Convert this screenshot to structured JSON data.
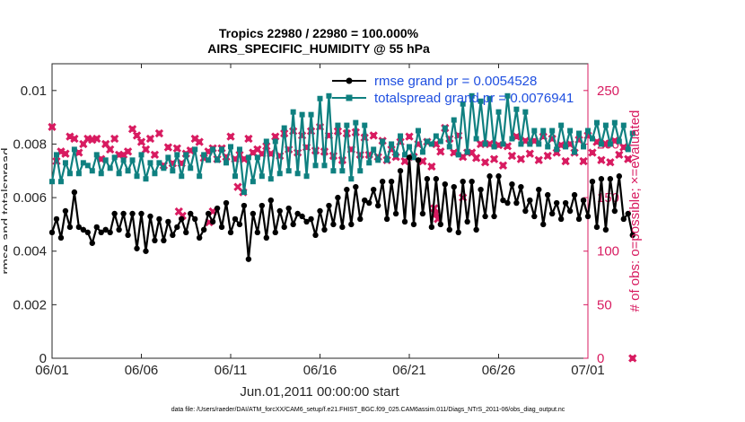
{
  "chart_data": {
    "type": "line",
    "title_line1": "Tropics 22980 / 22980 = 100.000%",
    "title_line2": "AIRS_SPECIFIC_HUMIDITY @ 55 hPa",
    "xlabel": "Jun.01,2011 00:00:00 start",
    "ylabel_left": "rmse and totalspread",
    "ylabel_right": "# of obs: o=possible; ×=evaluated",
    "footer": "data file: /Users/raeder/DAI/ATM_forcXX/CAM6_setup/f.e21.FHIST_BGC.f09_025.CAM6assim.011/Diags_NTrS_2011-06/obs_diag_output.nc",
    "xlim": [
      0,
      30
    ],
    "ylim_left": [
      0,
      0.011
    ],
    "ylim_right": [
      0,
      275
    ],
    "xticks": [
      {
        "value": 0,
        "label": "06/01"
      },
      {
        "value": 5,
        "label": "06/06"
      },
      {
        "value": 10,
        "label": "06/11"
      },
      {
        "value": 15,
        "label": "06/16"
      },
      {
        "value": 20,
        "label": "06/21"
      },
      {
        "value": 25,
        "label": "06/26"
      },
      {
        "value": 30,
        "label": "07/01"
      }
    ],
    "yticks_left": [
      {
        "value": 0,
        "label": "0"
      },
      {
        "value": 0.002,
        "label": "0.002"
      },
      {
        "value": 0.004,
        "label": "0.004"
      },
      {
        "value": 0.006,
        "label": "0.006"
      },
      {
        "value": 0.008,
        "label": "0.008"
      },
      {
        "value": 0.01,
        "label": "0.01"
      }
    ],
    "yticks_right": [
      {
        "value": 0,
        "label": "0"
      },
      {
        "value": 50,
        "label": "50"
      },
      {
        "value": 100,
        "label": "100"
      },
      {
        "value": 150,
        "label": "150"
      },
      {
        "value": 200,
        "label": "200"
      },
      {
        "value": 250,
        "label": "250"
      }
    ],
    "x_step_days": 0.25,
    "series": [
      {
        "name": "rmse",
        "legend_label": "rmse grand pr = 0.0054528",
        "color": "#000000",
        "marker": "circle",
        "axis": "left",
        "values": [
          0.0047,
          0.0052,
          0.0045,
          0.0055,
          0.0049,
          0.0062,
          0.0049,
          0.0048,
          0.0047,
          0.0043,
          0.0049,
          0.0047,
          0.0048,
          0.0047,
          0.0054,
          0.0048,
          0.0054,
          0.0046,
          0.0054,
          0.0041,
          0.0054,
          0.004,
          0.0053,
          0.0044,
          0.0052,
          0.0044,
          0.0051,
          0.0046,
          0.0049,
          0.0052,
          0.0047,
          0.0054,
          0.0052,
          0.0045,
          0.0048,
          0.0054,
          0.0051,
          0.0056,
          0.0049,
          0.0058,
          0.0047,
          0.0052,
          0.005,
          0.0057,
          0.0037,
          0.0054,
          0.0047,
          0.0057,
          0.0045,
          0.0059,
          0.0047,
          0.0055,
          0.0049,
          0.0056,
          0.005,
          0.0054,
          0.0053,
          0.0051,
          0.0052,
          0.0046,
          0.0055,
          0.0048,
          0.0057,
          0.005,
          0.006,
          0.0049,
          0.0063,
          0.005,
          0.0064,
          0.0052,
          0.0059,
          0.0058,
          0.0063,
          0.0057,
          0.0066,
          0.0052,
          0.0066,
          0.0054,
          0.007,
          0.0051,
          0.0075,
          0.005,
          0.0074,
          0.0054,
          0.0067,
          0.0049,
          0.0067,
          0.005,
          0.0065,
          0.0048,
          0.0064,
          0.0047,
          0.0066,
          0.0051,
          0.0066,
          0.0048,
          0.0063,
          0.0053,
          0.0068,
          0.0053,
          0.0068,
          0.0059,
          0.0058,
          0.0065,
          0.0058,
          0.0064,
          0.0055,
          0.0059,
          0.0053,
          0.0063,
          0.005,
          0.0061,
          0.0054,
          0.0058,
          0.0052,
          0.0058,
          0.0055,
          0.0061,
          0.0052,
          0.0059,
          0.0053,
          0.0066,
          0.0049,
          0.0067,
          0.0048,
          0.0067,
          0.0055,
          0.0068,
          0.0052,
          0.0054,
          0.0046
        ]
      },
      {
        "name": "totalspread",
        "legend_label": "totalspread grand pr = 0.0076941",
        "color": "#0f8080",
        "marker": "square",
        "axis": "left",
        "values": [
          0.0066,
          0.0076,
          0.0066,
          0.0073,
          0.0069,
          0.0078,
          0.0069,
          0.0073,
          0.0072,
          0.007,
          0.0076,
          0.0069,
          0.0074,
          0.0071,
          0.0075,
          0.0069,
          0.0074,
          0.007,
          0.0074,
          0.0068,
          0.0076,
          0.0067,
          0.0073,
          0.0069,
          0.0073,
          0.0071,
          0.0075,
          0.007,
          0.0076,
          0.0068,
          0.0076,
          0.0071,
          0.0078,
          0.0068,
          0.0076,
          0.0074,
          0.0078,
          0.0074,
          0.0078,
          0.0073,
          0.0079,
          0.0068,
          0.0078,
          0.0062,
          0.0075,
          0.0066,
          0.0075,
          0.0068,
          0.0081,
          0.0067,
          0.0081,
          0.0069,
          0.0086,
          0.007,
          0.0092,
          0.0069,
          0.0091,
          0.0068,
          0.0091,
          0.0072,
          0.0097,
          0.0072,
          0.0098,
          0.007,
          0.0087,
          0.007,
          0.0087,
          0.0067,
          0.0088,
          0.007,
          0.0087,
          0.0073,
          0.0078,
          0.0074,
          0.0081,
          0.0074,
          0.008,
          0.0076,
          0.0083,
          0.0076,
          0.0079,
          0.0075,
          0.0085,
          0.0077,
          0.0081,
          0.008,
          0.0083,
          0.0081,
          0.0086,
          0.0079,
          0.0089,
          0.0076,
          0.0095,
          0.0077,
          0.0098,
          0.0082,
          0.0096,
          0.008,
          0.0097,
          0.0079,
          0.0092,
          0.008,
          0.0098,
          0.0082,
          0.0093,
          0.008,
          0.0092,
          0.008,
          0.0085,
          0.008,
          0.0085,
          0.0079,
          0.0085,
          0.0078,
          0.0087,
          0.0079,
          0.0085,
          0.0077,
          0.0084,
          0.0079,
          0.0085,
          0.0082,
          0.0088,
          0.008,
          0.0087,
          0.008,
          0.0088,
          0.0081,
          0.0087,
          0.0078,
          0.0084
        ]
      },
      {
        "name": "obs_possible",
        "color": "#d81b60",
        "marker": "circle",
        "axis": "right",
        "values": [
          216,
          184,
          193,
          191,
          207,
          205,
          192,
          200,
          205,
          204,
          205,
          186,
          200,
          195,
          205,
          190,
          190,
          193,
          214,
          208,
          202,
          195,
          205,
          190,
          210,
          180,
          197,
          182,
          196,
          182,
          191,
          194,
          205,
          202,
          187,
          193,
          196,
          186,
          196,
          188,
          207,
          186,
          190,
          186,
          205,
          192,
          195,
          191,
          198,
          191,
          207,
          189,
          210,
          195,
          212,
          192,
          208,
          197,
          212,
          194,
          216,
          193,
          208,
          189,
          212,
          185,
          210,
          195,
          211,
          190,
          206,
          190,
          208,
          188,
          203,
          185,
          195,
          188,
          202,
          184,
          207,
          188,
          200,
          184,
          202,
          179,
          200,
          193,
          215,
          205,
          192,
          208,
          188,
          192,
          192,
          187,
          200,
          183,
          200,
          186,
          199,
          180,
          198,
          189,
          207,
          186,
          203,
          191,
          203,
          185,
          207,
          189,
          205,
          192,
          199,
          184,
          200,
          192,
          204,
          184,
          208,
          192,
          202,
          185,
          200,
          183,
          203,
          190,
          197,
          186,
          0
        ]
      },
      {
        "name": "obs_evaluated",
        "color": "#d81b60",
        "marker": "x",
        "axis": "right",
        "values": [
          216,
          184,
          193,
          191,
          207,
          205,
          192,
          200,
          205,
          204,
          205,
          186,
          200,
          195,
          205,
          190,
          190,
          193,
          214,
          208,
          202,
          195,
          205,
          190,
          210,
          180,
          197,
          182,
          196,
          182,
          191,
          194,
          205,
          202,
          187,
          193,
          196,
          186,
          196,
          188,
          207,
          186,
          190,
          186,
          205,
          192,
          195,
          191,
          198,
          191,
          207,
          189,
          210,
          195,
          212,
          192,
          208,
          197,
          212,
          194,
          216,
          193,
          208,
          189,
          212,
          185,
          210,
          195,
          211,
          190,
          206,
          190,
          208,
          188,
          203,
          185,
          195,
          188,
          202,
          184,
          207,
          188,
          200,
          184,
          202,
          179,
          200,
          193,
          215,
          205,
          192,
          208,
          188,
          192,
          192,
          187,
          200,
          183,
          200,
          186,
          199,
          180,
          198,
          189,
          207,
          186,
          203,
          191,
          203,
          185,
          207,
          189,
          205,
          192,
          199,
          184,
          200,
          192,
          204,
          184,
          208,
          192,
          202,
          185,
          200,
          183,
          203,
          190,
          197,
          186,
          0
        ]
      }
    ],
    "extra_points": {
      "obs_evaluated": [
        {
          "x": 7.1,
          "y": 137
        },
        {
          "x": 7.3,
          "y": 133
        },
        {
          "x": 9.0,
          "y": 137
        },
        {
          "x": 8.8,
          "y": 127
        },
        {
          "x": 10.4,
          "y": 160
        },
        {
          "x": 10.7,
          "y": 155
        },
        {
          "x": 21.5,
          "y": 135
        },
        {
          "x": 21.6,
          "y": 130
        },
        {
          "x": 21.4,
          "y": 140
        },
        {
          "x": 23.0,
          "y": 150
        }
      ]
    }
  }
}
